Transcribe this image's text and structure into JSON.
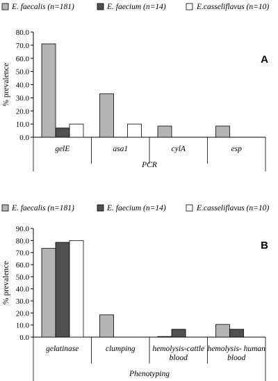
{
  "colors": {
    "series": [
      "#b4b4b4",
      "#505050",
      "#ffffff"
    ],
    "stroke": "#000000"
  },
  "chart_data": [
    {
      "type": "bar",
      "panel_label": "A",
      "title": "",
      "xlabel": "PCR",
      "ylabel": "% prevalence",
      "ylim": [
        0,
        80
      ],
      "yticks": [
        "0.0",
        "10.0",
        "20.0",
        "30.0",
        "40.0",
        "50.0",
        "60.0",
        "70.0",
        "80.0"
      ],
      "categories": [
        [
          "gelE"
        ],
        [
          "asa1"
        ],
        [
          "cylA"
        ],
        [
          "esp"
        ]
      ],
      "series": [
        {
          "name": "E. faecalis (n=181)",
          "values": [
            71.0,
            33.0,
            8.5,
            8.5
          ]
        },
        {
          "name": "E. faecium (n=14)",
          "values": [
            7.0,
            0,
            0,
            0
          ]
        },
        {
          "name": "E.casseliflavus (n=10)",
          "values": [
            10.0,
            10.0,
            0,
            0
          ]
        }
      ],
      "legend_position": "top",
      "grid": false
    },
    {
      "type": "bar",
      "panel_label": "B",
      "title": "",
      "xlabel": "Phenotyping",
      "ylabel": "% prevalence",
      "ylim": [
        0,
        90
      ],
      "yticks": [
        "0.0",
        "10.0",
        "20.0",
        "30.0",
        "40.0",
        "50.0",
        "60.0",
        "70.0",
        "80.0",
        "90.0"
      ],
      "categories": [
        [
          "gelatinase"
        ],
        [
          "clumping"
        ],
        [
          "hemolysis-cattle",
          "blood"
        ],
        [
          "hemolysis- human",
          "blood"
        ]
      ],
      "series": [
        {
          "name": "E. faecalis (n=181)",
          "values": [
            73.5,
            18.5,
            0.5,
            10.5
          ]
        },
        {
          "name": "E. faecium (n=14)",
          "values": [
            78.5,
            0,
            6.5,
            6.5
          ]
        },
        {
          "name": "E.casseliflavus (n=10)",
          "values": [
            80.0,
            0,
            0,
            0
          ]
        }
      ],
      "legend_position": "top",
      "grid": false
    }
  ]
}
